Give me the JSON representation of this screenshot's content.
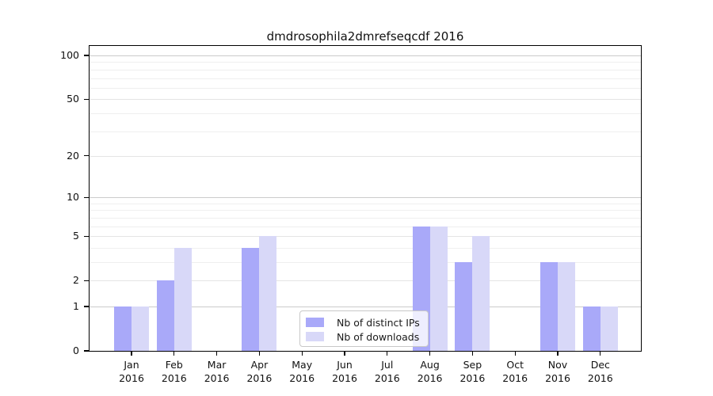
{
  "chart_data": {
    "type": "bar",
    "title": "dmdrosophila2dmrefseqcdf 2016",
    "categories": [
      "Jan 2016",
      "Feb 2016",
      "Mar 2016",
      "Apr 2016",
      "May 2016",
      "Jun 2016",
      "Jul 2016",
      "Aug 2016",
      "Sep 2016",
      "Oct 2016",
      "Nov 2016",
      "Dec 2016"
    ],
    "series": [
      {
        "name": "Nb of distinct IPs",
        "color": "#a9a9f9",
        "values": [
          1,
          2,
          0,
          4,
          0,
          0,
          0,
          6,
          3,
          0,
          3,
          1
        ]
      },
      {
        "name": "Nb of downloads",
        "color": "#d8d8f8",
        "values": [
          1,
          4,
          0,
          5,
          0,
          0,
          0,
          6,
          5,
          0,
          3,
          1
        ]
      }
    ],
    "xlabel": "",
    "ylabel": "",
    "yscale": "log1p",
    "ylim": [
      0,
      116
    ],
    "y_major_ticks": [
      0,
      1,
      2,
      5,
      10,
      20,
      50,
      100
    ],
    "y_decade_gridlines": [
      1,
      10,
      100
    ],
    "y_minor_ticks": [
      3,
      4,
      6,
      7,
      8,
      9,
      30,
      40,
      60,
      70,
      80,
      90
    ],
    "grid": "horizontal",
    "legend_position": "lower center"
  },
  "colors": {
    "bar_distinct_ips": "#a9a9f9",
    "bar_downloads": "#d8d8f8",
    "grid_decade": "#cbcbcb",
    "grid_major": "#e4e4e4",
    "grid_minor": "#efefef",
    "axis": "#000000",
    "background": "#ffffff"
  }
}
